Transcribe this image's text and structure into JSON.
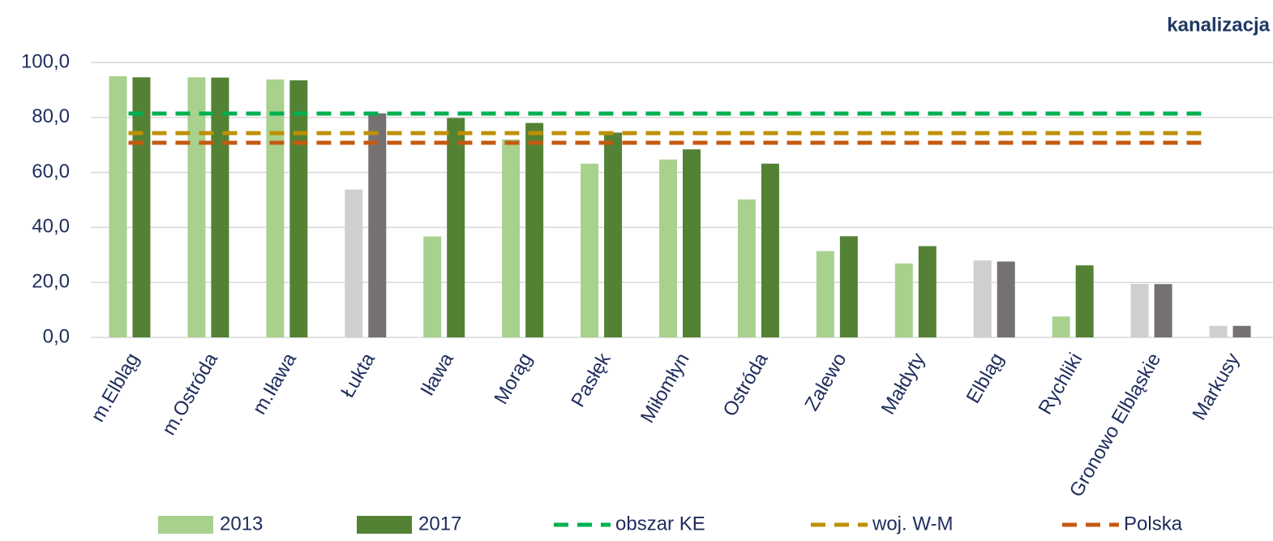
{
  "chart_data": {
    "type": "bar",
    "title": "kanalizacja",
    "categories": [
      "m.Elbląg",
      "m.Ostróda",
      "m.Iława",
      "Łukta",
      "Iława",
      "Morąg",
      "Pasłęk",
      "Miłomłyn",
      "Ostróda",
      "Zalewo",
      "Małdyty",
      "Elbląg",
      "Rychliki",
      "Gronowo Elbląskie",
      "Markusy"
    ],
    "series": [
      {
        "name": "2013",
        "color": "#a9d18e",
        "colors": [
          "#a9d18e",
          "#a9d18e",
          "#a9d18e",
          "#d0cece",
          "#a9d18e",
          "#a9d18e",
          "#a9d18e",
          "#a9d18e",
          "#a9d18e",
          "#a9d18e",
          "#a9d18e",
          "#d0cece",
          "#a9d18e",
          "#d0cece",
          "#d0cece"
        ],
        "values": [
          95.0,
          94.6,
          93.8,
          53.8,
          36.7,
          72.0,
          63.2,
          64.7,
          50.2,
          31.4,
          26.9,
          28.0,
          7.6,
          19.5,
          4.2
        ]
      },
      {
        "name": "2017",
        "color": "#548235",
        "colors": [
          "#548235",
          "#548235",
          "#548235",
          "#767171",
          "#548235",
          "#548235",
          "#548235",
          "#548235",
          "#548235",
          "#548235",
          "#548235",
          "#767171",
          "#548235",
          "#767171",
          "#767171"
        ],
        "values": [
          94.6,
          94.5,
          93.5,
          81.5,
          79.8,
          78.0,
          74.5,
          68.4,
          63.2,
          36.8,
          33.2,
          27.6,
          26.2,
          19.4,
          4.2
        ]
      }
    ],
    "reference_lines": [
      {
        "name": "obszar KE",
        "color": "#00b050",
        "value": 81.4
      },
      {
        "name": "woj. W-M",
        "color": "#bf9000",
        "value": 74.3
      },
      {
        "name": "Polska",
        "color": "#c55a11",
        "value": 70.8
      }
    ],
    "ylim": [
      0,
      100
    ],
    "yticks": [
      {
        "value": 0,
        "label": "0,0"
      },
      {
        "value": 20,
        "label": "20,0"
      },
      {
        "value": 40,
        "label": "40,0"
      },
      {
        "value": 60,
        "label": "60,0"
      },
      {
        "value": 80,
        "label": "80,0"
      },
      {
        "value": 100,
        "label": "100,0"
      }
    ],
    "grid": true,
    "legend": "bottom"
  }
}
